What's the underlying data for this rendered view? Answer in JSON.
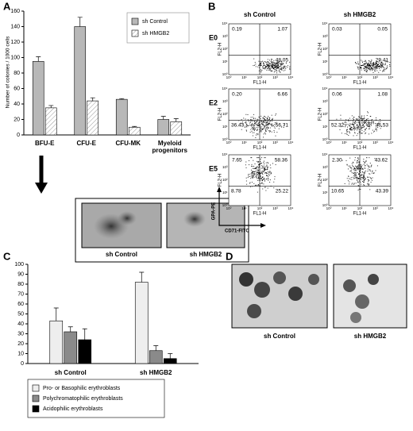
{
  "panels": [
    "A",
    "B",
    "C",
    "D"
  ],
  "chart_data": [
    {
      "type": "bar",
      "y_label": "Number of colonies / 1000 cells",
      "categories": [
        "BFU-E",
        "CFU-E",
        "CFU-MK",
        "Myeloid progenitors"
      ],
      "series": [
        {
          "name": "sh Control",
          "color": "#b8b8b8",
          "values": [
            95,
            140,
            46,
            20
          ],
          "errors": [
            6,
            12,
            1,
            4
          ]
        },
        {
          "name": "sh HMGB2",
          "color": "hatch",
          "values": [
            35,
            44,
            10,
            17
          ],
          "errors": [
            3,
            4,
            1,
            4
          ]
        }
      ],
      "ylim": [
        0,
        160
      ],
      "yticks": [
        0,
        20,
        40,
        60,
        80,
        100,
        120,
        140,
        160
      ],
      "legend": "upper right"
    },
    {
      "type": "bar",
      "categories": [
        "sh Control",
        "sh HMGB2"
      ],
      "series": [
        {
          "name": "Pro- or Basophilic erythroblasts",
          "color": "#eeeeee",
          "values": [
            43,
            82
          ],
          "errors": [
            13,
            10
          ]
        },
        {
          "name": "Polychromatophilic erythroblasts",
          "color": "#8a8a8a",
          "values": [
            32,
            13
          ],
          "errors": [
            5,
            5
          ]
        },
        {
          "name": "Acidophilic erythroblasts",
          "color": "#000000",
          "values": [
            24,
            5
          ],
          "errors": [
            11,
            5
          ]
        }
      ],
      "ylim": [
        0,
        100
      ],
      "yticks": [
        0,
        10,
        20,
        30,
        40,
        50,
        60,
        70,
        80,
        90,
        100
      ],
      "legend": "below"
    }
  ],
  "colony_images": {
    "labels": [
      "sh Control",
      "sh HMGB2"
    ]
  },
  "flow": {
    "columns": [
      "sh Control",
      "sh HMGB2"
    ],
    "y_axis_label": "FL2-H",
    "x_axis_label": "FL1-H",
    "y_marker": "GPA-PE",
    "x_marker": "CD71-FITC",
    "ticks": [
      "10⁰",
      "10¹",
      "10²",
      "10³",
      "10⁴"
    ],
    "rows": [
      {
        "label": "E0",
        "plots": [
          {
            "ul": "0.19",
            "ur": "1.07",
            "lr": "48.05"
          },
          {
            "ul": "0.03",
            "ur": "0.05",
            "lr": "29.41"
          }
        ]
      },
      {
        "label": "E2",
        "plots": [
          {
            "ul": "0.20",
            "ur": "6.66",
            "ll": "36.43",
            "lr": "56.71"
          },
          {
            "ul": "0.06",
            "ur": "1.08",
            "ll": "52.32",
            "lr": "46.53"
          }
        ]
      },
      {
        "label": "E5",
        "plots": [
          {
            "ul": "7.65",
            "ur": "58.36",
            "ll": "8.78",
            "lr": "25.22"
          },
          {
            "ul": "2.30",
            "ur": "43.62",
            "ll": "10.65",
            "lr": "43.39"
          }
        ]
      }
    ]
  },
  "cell_images": {
    "labels": [
      "sh Control",
      "sh HMGB2"
    ]
  }
}
